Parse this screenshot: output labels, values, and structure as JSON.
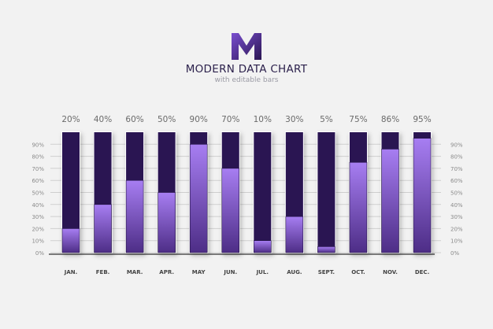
{
  "header": {
    "logo_letter": "M",
    "title": "MODERN DATA CHART",
    "subtitle": "with editable bars"
  },
  "colors": {
    "background": "#f2f2f2",
    "bar_empty": "#2a1552",
    "bar_fill_top": "#a77ef2",
    "bar_fill_bottom": "#4d2d86",
    "text": "#555555"
  },
  "chart_data": {
    "type": "bar",
    "categories": [
      "JAN.",
      "FEB.",
      "MAR.",
      "APR.",
      "MAY",
      "JUN.",
      "JUL.",
      "AUG.",
      "SEPT.",
      "OCT.",
      "NOV.",
      "DEC."
    ],
    "values": [
      20,
      40,
      60,
      50,
      90,
      70,
      10,
      30,
      5,
      75,
      86,
      95
    ],
    "data_labels": [
      "20%",
      "40%",
      "60%",
      "50%",
      "90%",
      "70%",
      "10%",
      "30%",
      "5%",
      "75%",
      "86%",
      "95%"
    ],
    "y_ticks": [
      "0%",
      "10%",
      "20%",
      "30%",
      "40%",
      "50%",
      "60%",
      "70%",
      "80%",
      "90%"
    ],
    "ylim": [
      0,
      100
    ],
    "grid": true,
    "y_axis_labels": "both sides"
  }
}
